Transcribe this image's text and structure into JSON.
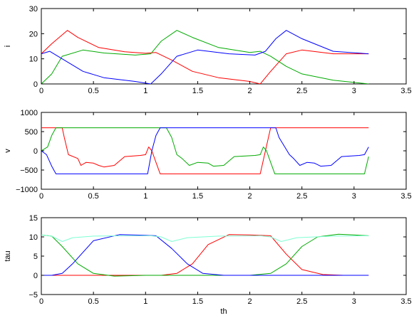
{
  "chart_data": [
    {
      "type": "line",
      "ylabel": "i",
      "xlabel": "",
      "xlim": [
        0,
        3.5
      ],
      "ylim": [
        0,
        30
      ],
      "xticks": [
        "0",
        "0.5",
        "1",
        "1.5",
        "2",
        "2.5",
        "3",
        "3.5"
      ],
      "yticks": [
        "0",
        "10",
        "20",
        "30"
      ],
      "series": [
        {
          "color": "#ff0000",
          "x": [
            0,
            0.1,
            0.25,
            0.35,
            0.55,
            0.8,
            1.0,
            1.1,
            1.25,
            1.45,
            1.7,
            2.0,
            2.1,
            2.2,
            2.35,
            2.5,
            2.8,
            3.14
          ],
          "y": [
            12,
            16,
            21.3,
            18.5,
            14.5,
            12.8,
            12.2,
            12.5,
            9.5,
            5,
            2.5,
            1,
            0,
            5,
            12,
            13.5,
            12,
            12
          ]
        },
        {
          "color": "#00aa00",
          "x": [
            0,
            0.1,
            0.2,
            0.4,
            0.6,
            0.9,
            1.05,
            1.15,
            1.3,
            1.45,
            1.7,
            2.0,
            2.1,
            2.2,
            2.35,
            2.5,
            2.8,
            3.14
          ],
          "y": [
            0,
            4,
            11,
            13.5,
            12.3,
            11.5,
            12,
            17,
            21.3,
            18.5,
            14.5,
            12.5,
            13,
            11,
            7,
            4,
            1.5,
            0
          ]
        },
        {
          "color": "#0000ff",
          "x": [
            0,
            0.08,
            0.2,
            0.4,
            0.6,
            0.9,
            1.05,
            1.15,
            1.3,
            1.5,
            1.8,
            2.05,
            2.15,
            2.25,
            2.35,
            2.5,
            2.8,
            3.14
          ],
          "y": [
            12,
            13,
            10,
            5,
            2.5,
            1,
            0,
            4,
            11,
            13.5,
            12,
            11.5,
            13,
            18,
            21.3,
            18,
            13,
            12
          ]
        }
      ]
    },
    {
      "type": "line",
      "ylabel": "v",
      "xlabel": "",
      "xlim": [
        0,
        3.5
      ],
      "ylim": [
        -1000,
        1000
      ],
      "xticks": [
        "0",
        "0.5",
        "1",
        "1.5",
        "2",
        "2.5",
        "3",
        "3.5"
      ],
      "yticks": [
        "−1000",
        "−500",
        "0",
        "500",
        "1000"
      ],
      "series": [
        {
          "color": "#ff0000",
          "x": [
            0,
            0.2,
            0.22,
            0.26,
            0.35,
            0.38,
            0.43,
            0.5,
            0.55,
            0.6,
            0.7,
            0.8,
            0.95,
            1.0,
            1.03,
            1.06,
            1.1,
            1.14,
            1.2,
            1.5,
            1.8,
            2.1,
            2.15,
            2.2,
            2.25,
            3.14
          ],
          "y": [
            600,
            600,
            350,
            -100,
            -200,
            -380,
            -300,
            -320,
            -380,
            -420,
            -380,
            -150,
            -120,
            -100,
            100,
            0,
            -300,
            -600,
            -600,
            -600,
            -600,
            -600,
            0,
            600,
            600,
            600
          ]
        },
        {
          "color": "#00aa00",
          "x": [
            0,
            0.06,
            0.1,
            0.14,
            1.08,
            1.13,
            1.2,
            1.25,
            1.3,
            1.35,
            1.42,
            1.5,
            1.6,
            1.65,
            1.75,
            1.85,
            2.05,
            2.1,
            2.13,
            2.16,
            2.2,
            2.24,
            2.3,
            2.5,
            2.8,
            3.1,
            3.14
          ],
          "y": [
            0,
            100,
            400,
            600,
            600,
            600,
            600,
            350,
            -100,
            -200,
            -380,
            -300,
            -320,
            -400,
            -380,
            -150,
            -120,
            -100,
            100,
            0,
            -300,
            -600,
            -600,
            -600,
            -600,
            -600,
            -150
          ]
        },
        {
          "color": "#0000ff",
          "x": [
            0,
            0.05,
            0.1,
            0.14,
            0.4,
            0.7,
            1.02,
            1.06,
            1.1,
            1.14,
            2.15,
            2.2,
            2.25,
            2.28,
            2.38,
            2.42,
            2.48,
            2.55,
            2.62,
            2.68,
            2.78,
            2.88,
            3.05,
            3.1,
            3.14
          ],
          "y": [
            0,
            -100,
            -400,
            -600,
            -600,
            -600,
            -600,
            0,
            400,
            600,
            600,
            600,
            600,
            350,
            -100,
            -200,
            -380,
            -300,
            -320,
            -400,
            -380,
            -150,
            -120,
            -100,
            100
          ]
        }
      ]
    },
    {
      "type": "line",
      "ylabel": "tau",
      "xlabel": "th",
      "xlim": [
        0,
        3.5
      ],
      "ylim": [
        -5,
        15
      ],
      "xticks": [
        "0",
        "0.5",
        "1",
        "1.5",
        "2",
        "2.5",
        "3",
        "3.5"
      ],
      "yticks": [
        "−5",
        "0",
        "5",
        "10",
        "15"
      ],
      "series": [
        {
          "color": "#ff0000",
          "x": [
            0,
            0.5,
            1.0,
            1.15,
            1.3,
            1.45,
            1.6,
            1.8,
            2.0,
            2.2,
            2.35,
            2.5,
            2.7,
            2.9,
            3.14
          ],
          "y": [
            0,
            0,
            0,
            0,
            0.5,
            3,
            8,
            10.6,
            10.5,
            10.3,
            5.5,
            1.5,
            0.2,
            0,
            0
          ]
        },
        {
          "color": "#00aa00",
          "x": [
            0,
            0.1,
            0.2,
            0.35,
            0.5,
            0.7,
            1.0,
            1.5,
            2.0,
            2.2,
            2.35,
            2.5,
            2.65,
            2.85,
            3.0,
            3.14
          ],
          "y": [
            10.5,
            10.2,
            7.5,
            3,
            0.5,
            -0.2,
            0,
            0,
            0,
            0.5,
            3,
            7.5,
            10,
            10.7,
            10.5,
            10.3
          ]
        },
        {
          "color": "#0000ff",
          "x": [
            0,
            0.1,
            0.2,
            0.3,
            0.5,
            0.75,
            1.0,
            1.1,
            1.25,
            1.4,
            1.55,
            1.75,
            2.0,
            2.5,
            3.14
          ],
          "y": [
            0,
            0,
            0.5,
            3,
            9,
            10.6,
            10.4,
            10.3,
            7,
            3,
            0.5,
            0,
            0,
            0,
            0
          ]
        },
        {
          "color": "#7fffd4",
          "x": [
            0,
            0.1,
            0.2,
            0.3,
            0.5,
            0.8,
            1.05,
            1.15,
            1.25,
            1.4,
            1.7,
            2.1,
            2.2,
            2.3,
            2.45,
            2.8,
            3.14
          ],
          "y": [
            10.5,
            10.2,
            8.8,
            9.8,
            10.2,
            10.3,
            10.3,
            10,
            8.8,
            9.8,
            10.2,
            10.3,
            10,
            8.8,
            9.8,
            10.2,
            10.3
          ]
        }
      ]
    }
  ]
}
